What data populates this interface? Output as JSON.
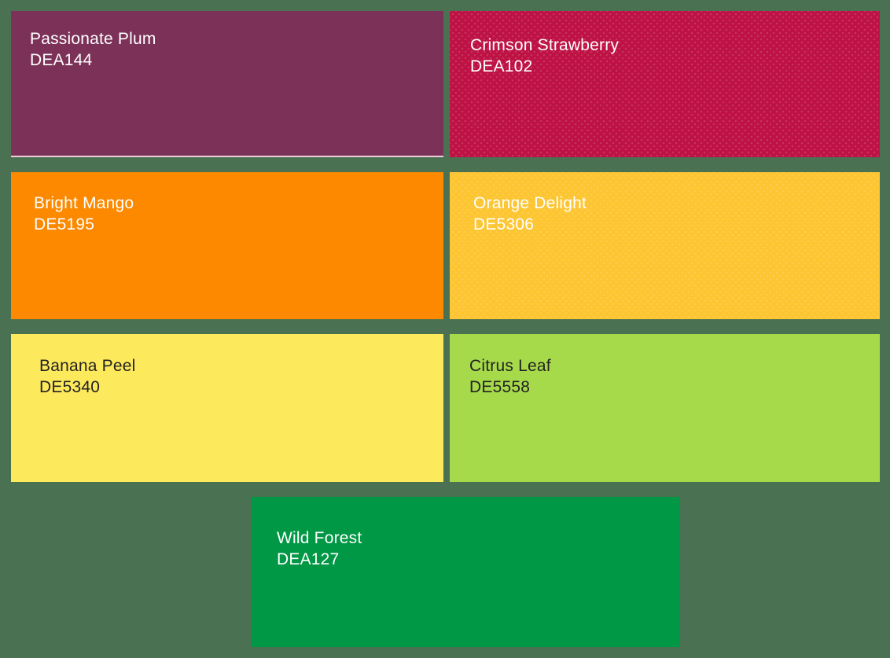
{
  "page": {
    "background_color": "#4A7152"
  },
  "swatches": [
    {
      "name": "Passionate Plum",
      "code": "DEA144",
      "color": "#7C3258",
      "text_color": "#FFFFFF",
      "underline_color": "#EFCEDC"
    },
    {
      "name": "Crimson Strawberry",
      "code": "DEA102",
      "color": "#BE1245",
      "text_color": "#FFFFFF"
    },
    {
      "name": "Bright Mango",
      "code": "DE5195",
      "color": "#FC8900",
      "text_color": "#FFFFFF"
    },
    {
      "name": "Orange Delight",
      "code": "DE5306",
      "color": "#FDC531",
      "text_color": "#FFFFFF"
    },
    {
      "name": "Banana Peel",
      "code": "DE5340",
      "color": "#FDE95C",
      "text_color": "#222222"
    },
    {
      "name": "Citrus Leaf",
      "code": "DE5558",
      "color": "#A7DA4B",
      "text_color": "#222222"
    },
    {
      "name": "Wild Forest",
      "code": "DEA127",
      "color": "#009845",
      "text_color": "#FFFFFF"
    }
  ]
}
